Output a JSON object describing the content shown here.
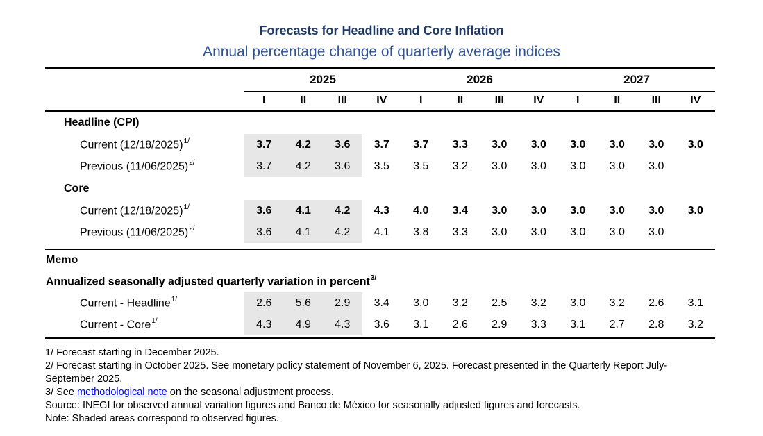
{
  "title": "Forecasts for Headline and Core Inflation",
  "subtitle": "Annual percentage change of quarterly average indices",
  "colors": {
    "title_text": "#1F3864",
    "subtitle_text": "#2E5496",
    "observed_shading": "#E8E7E7",
    "link": "#0000FF",
    "rule_lines": "#000000"
  },
  "table": {
    "years": [
      "2025",
      "2026",
      "2027"
    ],
    "quarters": [
      "I",
      "II",
      "III",
      "IV",
      "I",
      "II",
      "III",
      "IV",
      "I",
      "II",
      "III",
      "IV"
    ],
    "rows": [
      {
        "type": "section",
        "indent": 1,
        "label": "Headline (CPI)"
      },
      {
        "type": "data",
        "indent": 2,
        "label": "Current (12/18/2025)",
        "sup": "1/",
        "bold": true,
        "shaded": 3,
        "values": [
          "3.7",
          "4.2",
          "3.6",
          "3.7",
          "3.7",
          "3.3",
          "3.0",
          "3.0",
          "3.0",
          "3.0",
          "3.0",
          "3.0"
        ]
      },
      {
        "type": "data",
        "indent": 2,
        "label": "Previous (11/06/2025)",
        "sup": "2/",
        "bold": false,
        "shaded": 3,
        "values": [
          "3.7",
          "4.2",
          "3.6",
          "3.5",
          "3.5",
          "3.2",
          "3.0",
          "3.0",
          "3.0",
          "3.0",
          "3.0",
          ""
        ]
      },
      {
        "type": "section",
        "indent": 1,
        "label": "Core"
      },
      {
        "type": "data",
        "indent": 2,
        "label": "Current (12/18/2025)",
        "sup": "1/",
        "bold": true,
        "shaded": 3,
        "values": [
          "3.6",
          "4.1",
          "4.2",
          "4.3",
          "4.0",
          "3.4",
          "3.0",
          "3.0",
          "3.0",
          "3.0",
          "3.0",
          "3.0"
        ]
      },
      {
        "type": "data",
        "indent": 2,
        "label": "Previous (11/06/2025)",
        "sup": "2/",
        "bold": false,
        "shaded": 3,
        "values": [
          "3.6",
          "4.1",
          "4.2",
          "4.1",
          "3.8",
          "3.3",
          "3.0",
          "3.0",
          "3.0",
          "3.0",
          "3.0",
          ""
        ]
      },
      {
        "type": "separator"
      },
      {
        "type": "heading",
        "indent": 0,
        "label": "Memo"
      },
      {
        "type": "heading",
        "indent": 0,
        "label": "Annualized seasonally adjusted quarterly variation in percent",
        "sup": "3/"
      },
      {
        "type": "data",
        "indent": 2,
        "label": "Current - Headline",
        "sup": "1/",
        "bold": false,
        "shaded": 3,
        "values": [
          "2.6",
          "5.6",
          "2.9",
          "3.4",
          "3.0",
          "3.2",
          "2.5",
          "3.2",
          "3.0",
          "3.2",
          "2.6",
          "3.1"
        ]
      },
      {
        "type": "data",
        "indent": 2,
        "label": "Current - Core",
        "sup": "1/",
        "bold": false,
        "shaded": 3,
        "values": [
          "4.3",
          "4.9",
          "4.3",
          "3.6",
          "3.1",
          "2.6",
          "2.9",
          "3.3",
          "3.1",
          "2.7",
          "2.8",
          "3.2"
        ]
      },
      {
        "type": "separator"
      }
    ]
  },
  "footnotes": [
    {
      "text": "1/ Forecast starting in December 2025."
    },
    {
      "text": "2/ Forecast starting in October 2025. See monetary policy statement of November 6, 2025. Forecast presented in the Quarterly Report July-September 2025."
    },
    {
      "prefix": "3/ See ",
      "link_text": "methodological note",
      "suffix": " on the seasonal adjustment process."
    },
    {
      "text": "Source: INEGI for observed annual variation figures and Banco de México for seasonally adjusted figures and forecasts."
    },
    {
      "text": "Note: Shaded areas correspond to observed figures."
    }
  ]
}
